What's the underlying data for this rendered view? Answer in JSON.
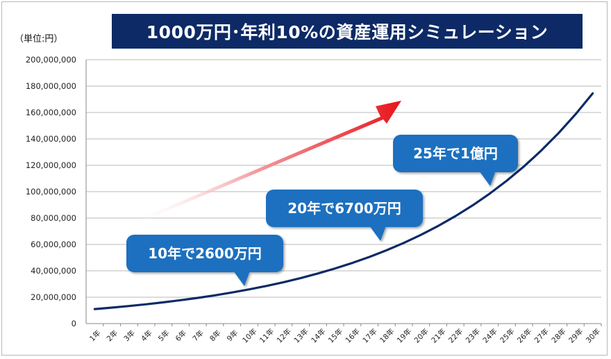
{
  "unit_label": "（単位:円）",
  "title": "1000万円･年利10%の資産運用シミュレーション",
  "colors": {
    "title_bg": "#0d2a66",
    "line": "#0d2a66",
    "bubble": "#1f6fbf",
    "arrow": "#e8141c",
    "grid": "#b8b8b8"
  },
  "chart_data": {
    "type": "line",
    "title": "1000万円･年利10%の資産運用シミュレーション",
    "ylabel": "（単位:円）",
    "xlabel": "",
    "ylim": [
      0,
      200000000
    ],
    "yticks": [
      0,
      20000000,
      40000000,
      60000000,
      80000000,
      100000000,
      120000000,
      140000000,
      160000000,
      180000000,
      200000000
    ],
    "ytick_labels": [
      "0",
      "20,000,000",
      "40,000,000",
      "60,000,000",
      "80,000,000",
      "100,000,000",
      "120,000,000",
      "140,000,000",
      "160,000,000",
      "180,000,000",
      "200,000,000"
    ],
    "grid": true,
    "categories": [
      "1年",
      "2年",
      "3年",
      "4年",
      "5年",
      "6年",
      "7年",
      "8年",
      "9年",
      "10年",
      "11年",
      "12年",
      "13年",
      "14年",
      "15年",
      "16年",
      "17年",
      "18年",
      "19年",
      "20年",
      "21年",
      "22年",
      "23年",
      "24年",
      "25年",
      "26年",
      "27年",
      "28年",
      "29年",
      "30年"
    ],
    "values": [
      11000000,
      12100000,
      13310000,
      14641000,
      16105100,
      17715610,
      19487171,
      21435888,
      23579477,
      25937425,
      28531167,
      31384284,
      34522712,
      37974983,
      41772482,
      45949730,
      50544703,
      55599173,
      61159090,
      67274999,
      74002499,
      81402749,
      89543024,
      98497327,
      108347059,
      119181765,
      131099942,
      144209936,
      158630930,
      174494023
    ],
    "annotations": [
      {
        "text": "10年で2600万円",
        "year": 10
      },
      {
        "text": "20年で6700万円",
        "year": 20
      },
      {
        "text": "25年で1億円",
        "year": 25
      }
    ]
  }
}
